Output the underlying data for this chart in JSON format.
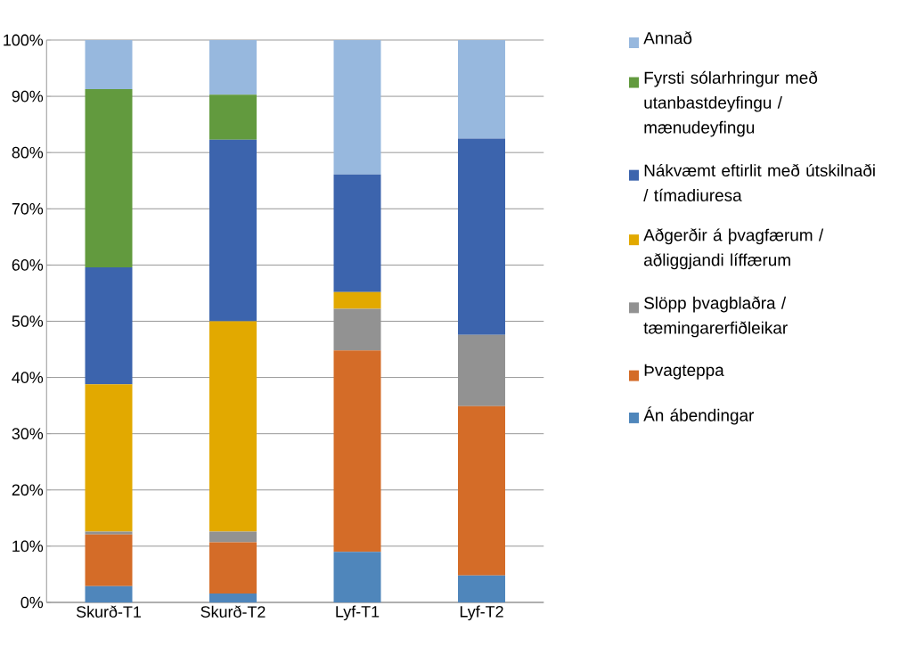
{
  "chart_data": {
    "type": "bar",
    "stacked": true,
    "categories": [
      "Skurð-T1",
      "Skurð-T2",
      "Lyf-T1",
      "Lyf-T2"
    ],
    "series": [
      {
        "name": "Án ábendingar",
        "color": "#4f86bb",
        "values": [
          2.9,
          1.6,
          9.0,
          4.8
        ]
      },
      {
        "name": "Þvagteppa",
        "color": "#d46c28",
        "values": [
          9.2,
          9.1,
          35.8,
          30.1
        ]
      },
      {
        "name": "Slöpp þvagblaðra / tæmingarerfiðleikar",
        "color": "#929292",
        "values": [
          0.5,
          1.9,
          7.4,
          12.7
        ]
      },
      {
        "name": "Aðgerðir á þvagfærum / aðliggjandi líffærum",
        "color": "#e2a900",
        "values": [
          26.2,
          37.4,
          3.0,
          0
        ]
      },
      {
        "name": "Nákvæmt eftirlit með útskilnaði / tímadiuresa",
        "color": "#3c64ad",
        "values": [
          20.8,
          32.3,
          20.9,
          34.9
        ]
      },
      {
        "name": "Fyrsti sólarhringur með utanbastdeyfingu / mænudeyfingu",
        "color": "#629a3e",
        "values": [
          31.7,
          8.0,
          0,
          0
        ]
      },
      {
        "name": "Annað",
        "color": "#97b8de",
        "values": [
          8.7,
          9.7,
          23.9,
          17.5
        ]
      }
    ],
    "ylim": [
      0,
      100
    ],
    "yticks": [
      {
        "value": 0,
        "label": "0%"
      },
      {
        "value": 10,
        "label": "10%"
      },
      {
        "value": 20,
        "label": "20%"
      },
      {
        "value": 30,
        "label": "30%"
      },
      {
        "value": 40,
        "label": "40%"
      },
      {
        "value": 50,
        "label": "50%"
      },
      {
        "value": 60,
        "label": "60%"
      },
      {
        "value": 70,
        "label": "70%"
      },
      {
        "value": 80,
        "label": "80%"
      },
      {
        "value": 90,
        "label": "90%"
      },
      {
        "value": 100,
        "label": "100%"
      }
    ],
    "grid": "y",
    "legend": "right"
  }
}
